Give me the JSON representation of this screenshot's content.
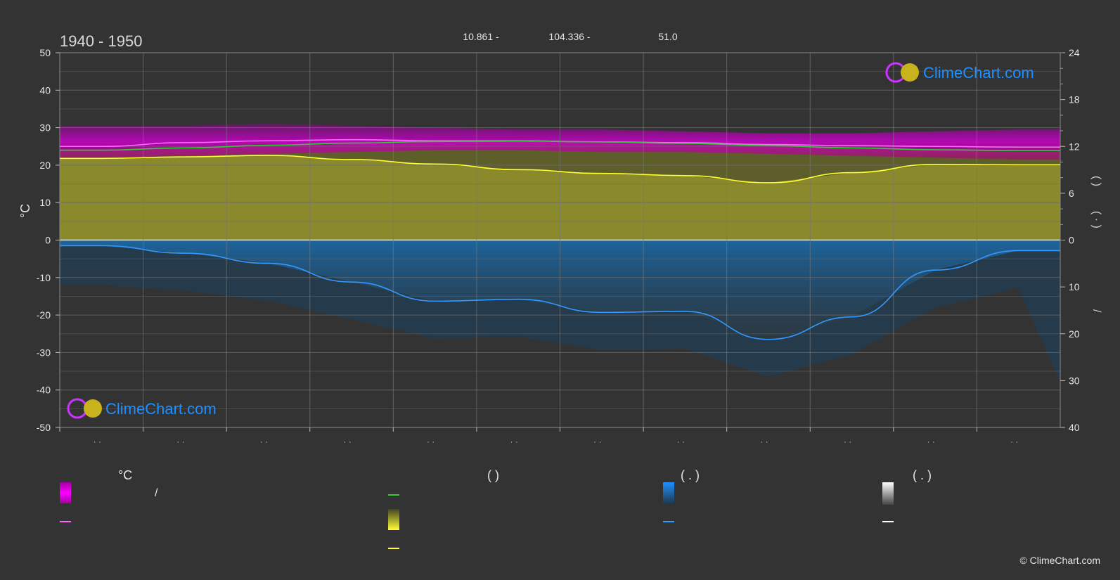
{
  "header": {
    "period": "1940 - 1950",
    "coords": [
      "10.861 -",
      "104.336 -",
      "51.0"
    ]
  },
  "branding": {
    "logo_text": "ClimeChart.com",
    "copyright": "© ClimeChart.com"
  },
  "chart_data": {
    "type": "area",
    "months": [
      "· ·",
      "· ·",
      "· ·",
      "· ·",
      "· ·",
      "· ·",
      "· ·",
      "· ·",
      "· ·",
      "· ·",
      "· ·",
      "· ·"
    ],
    "left_axis": {
      "label": "°C",
      "ylim": [
        -50,
        50
      ],
      "ticks": [
        50,
        40,
        30,
        20,
        10,
        0,
        -10,
        -20,
        -30,
        -40,
        -50
      ]
    },
    "right_axis_top": {
      "ylim": [
        0,
        24
      ],
      "ticks": [
        24,
        18,
        12,
        6,
        0
      ]
    },
    "right_axis_bottom": {
      "ylim": [
        0,
        40
      ],
      "ticks": [
        0,
        10,
        20,
        30,
        40
      ]
    },
    "right_labels": [
      "( )",
      "( · )",
      "/"
    ],
    "series": [
      {
        "key": "temp_mean",
        "color": "#ff66ff",
        "values": [
          25.0,
          26.0,
          26.5,
          26.8,
          26.5,
          26.5,
          26.2,
          26.0,
          25.5,
          25.2,
          25.0,
          24.8
        ]
      },
      {
        "key": "daylight",
        "color": "#33cc33",
        "values": [
          24.0,
          24.6,
          25.3,
          25.9,
          26.3,
          26.4,
          26.2,
          25.8,
          25.2,
          24.6,
          24.1,
          23.9
        ]
      },
      {
        "key": "sunshine",
        "color": "#ffff33",
        "values": [
          21.8,
          22.2,
          22.6,
          21.5,
          20.3,
          18.8,
          17.8,
          17.2,
          15.3,
          18.0,
          20.2,
          20.1
        ]
      },
      {
        "key": "precipitation",
        "color": "#3399ff",
        "values": [
          -1.5,
          -3.5,
          -6.2,
          -11.2,
          -16.3,
          -15.8,
          -19.3,
          -19.0,
          -26.5,
          -20.5,
          -8.0,
          -2.8
        ]
      }
    ],
    "bands": {
      "temp_max_min": {
        "color": "#cc00cc",
        "upper": [
          30.5,
          30.5,
          31,
          30.5,
          30,
          29.5,
          29.5,
          29,
          28.5,
          28.5,
          29,
          29.5
        ],
        "lower": [
          22,
          22.5,
          23,
          23.5,
          24,
          24,
          23.5,
          23.5,
          23,
          22.5,
          22,
          21.5
        ]
      }
    }
  },
  "legend": {
    "headers": [
      "°C",
      "( )",
      "( . )",
      "( . )"
    ],
    "items": [
      {
        "col": 0,
        "text": "/",
        "kind": "band",
        "color": "#ff00ff"
      },
      {
        "col": 0,
        "text": "",
        "kind": "line",
        "color": "#ff66ff"
      },
      {
        "col": 1,
        "text": "",
        "kind": "line",
        "color": "#33cc33"
      },
      {
        "col": 1,
        "text": "",
        "kind": "band",
        "color": "#ffff33"
      },
      {
        "col": 1,
        "text": "",
        "kind": "line",
        "color": "#ffff33"
      },
      {
        "col": 2,
        "text": "",
        "kind": "band",
        "color": "#1e90ff"
      },
      {
        "col": 2,
        "text": "",
        "kind": "line",
        "color": "#3399ff"
      },
      {
        "col": 3,
        "text": "",
        "kind": "band",
        "color": "#ffffff"
      },
      {
        "col": 3,
        "text": "",
        "kind": "line",
        "color": "#ffffff"
      }
    ]
  },
  "colors": {
    "background": "#333333",
    "grid": "#5a5a5a",
    "sunshine_fill": "#8f8f2e",
    "precip_fill": "#1f5f8f",
    "temp_band": "#b000b0",
    "logo_blue": "#1e90ff"
  }
}
